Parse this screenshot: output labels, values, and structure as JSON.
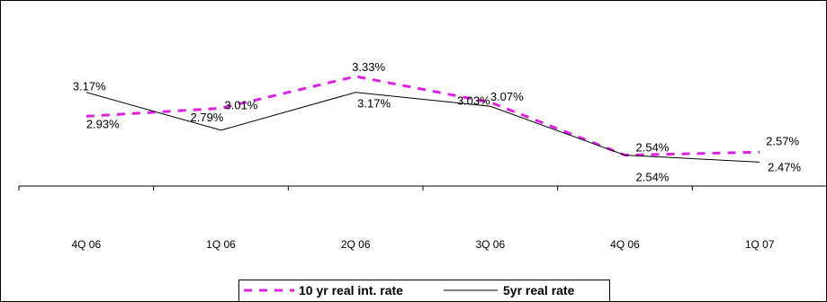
{
  "chart_data": {
    "type": "line",
    "title": "",
    "xlabel": "",
    "ylabel": "",
    "categories": [
      "4Q 06",
      "1Q 06",
      "2Q 06",
      "3Q 06",
      "4Q 06",
      "1Q 07"
    ],
    "ylim": [
      2.2,
      3.6
    ],
    "grid": false,
    "legend_position": "bottom",
    "series": [
      {
        "name": "10 yr real int. rate",
        "values": [
          2.93,
          3.01,
          3.33,
          3.07,
          2.54,
          2.57
        ],
        "labels": [
          "2.93%",
          "3.01%",
          "3.33%",
          "3.07%",
          "2.54%",
          "2.57%"
        ],
        "color": "#e020e0",
        "style": "dashed"
      },
      {
        "name": "5yr real rate",
        "values": [
          3.17,
          2.79,
          3.17,
          3.03,
          2.54,
          2.47
        ],
        "labels": [
          "3.17%",
          "2.79%",
          "3.17%",
          "3.03%",
          "2.54%",
          "2.47%"
        ],
        "color": "#000000",
        "style": "solid"
      }
    ]
  }
}
